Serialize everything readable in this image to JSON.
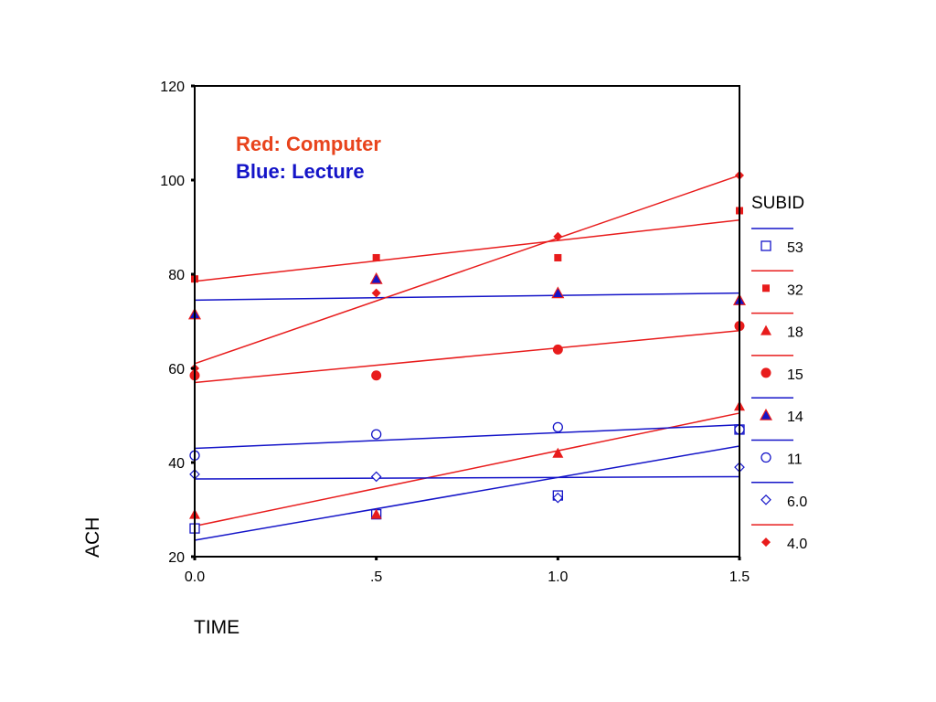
{
  "chart_data": {
    "type": "scatter",
    "xlabel": "TIME",
    "ylabel": "ACH",
    "xlim": [
      0,
      1.5
    ],
    "ylim": [
      20,
      120
    ],
    "x_ticks": [
      0,
      0.5,
      1.0,
      1.5
    ],
    "x_tick_labels": [
      "0.0",
      ".5",
      "1.0",
      "1.5"
    ],
    "y_ticks": [
      20,
      40,
      60,
      80,
      100,
      120
    ],
    "y_tick_labels": [
      "20",
      "40",
      "60",
      "80",
      "100",
      "120"
    ],
    "grid": false,
    "legend_title": "SUBID",
    "legend_position": "right",
    "annotations": [
      {
        "text": "Red: Computer",
        "color": "#e8431c"
      },
      {
        "text": "Blue: Lecture",
        "color": "#1414c8"
      }
    ],
    "colors": {
      "computer": "#e81c1c",
      "lecture": "#1414c8"
    },
    "series": [
      {
        "name": "53",
        "group": "lecture",
        "marker": "square-open",
        "x": [
          0,
          0.5,
          1.0,
          1.5
        ],
        "y": [
          26,
          29,
          33,
          47
        ],
        "fit": [
          [
            0,
            23.5
          ],
          [
            1.5,
            43.5
          ]
        ]
      },
      {
        "name": "32",
        "group": "computer",
        "marker": "square-filled",
        "x": [
          0,
          0.5,
          1.0,
          1.5
        ],
        "y": [
          79,
          83.5,
          83.5,
          93.5
        ],
        "fit": [
          [
            0,
            78.5
          ],
          [
            1.5,
            91.5
          ]
        ]
      },
      {
        "name": "18",
        "group": "computer",
        "marker": "triangle-filled",
        "x": [
          0,
          0.5,
          1.0,
          1.5
        ],
        "y": [
          29,
          29,
          42,
          52
        ],
        "fit": [
          [
            0,
            26.5
          ],
          [
            1.5,
            50.5
          ]
        ]
      },
      {
        "name": "15",
        "group": "computer",
        "marker": "circle-filled",
        "x": [
          0,
          0.5,
          1.0,
          1.5
        ],
        "y": [
          58.5,
          58.5,
          64,
          69
        ],
        "fit": [
          [
            0,
            57
          ],
          [
            1.5,
            68
          ]
        ]
      },
      {
        "name": "14",
        "group": "lecture",
        "marker": "triangle-blue-red",
        "x": [
          0,
          0.5,
          1.0,
          1.5
        ],
        "y": [
          71.5,
          79,
          76,
          74.5
        ],
        "fit": [
          [
            0,
            74.5
          ],
          [
            1.5,
            76
          ]
        ]
      },
      {
        "name": "11",
        "group": "lecture",
        "marker": "circle-open",
        "x": [
          0,
          0.5,
          1.0,
          1.5
        ],
        "y": [
          41.5,
          46,
          47.5,
          47
        ],
        "fit": [
          [
            0,
            43
          ],
          [
            1.5,
            48
          ]
        ]
      },
      {
        "name": "6.0",
        "group": "lecture",
        "marker": "diamond-open",
        "x": [
          0,
          0.5,
          1.0,
          1.5
        ],
        "y": [
          37.5,
          37,
          32.5,
          39
        ],
        "fit": [
          [
            0,
            36.5
          ],
          [
            1.5,
            37
          ]
        ]
      },
      {
        "name": "4.0",
        "group": "computer",
        "marker": "diamond-filled",
        "x": [
          0,
          0.5,
          1.0,
          1.5
        ],
        "y": [
          60,
          76,
          88,
          101
        ],
        "fit": [
          [
            0,
            61
          ],
          [
            1.5,
            101
          ]
        ]
      }
    ]
  }
}
